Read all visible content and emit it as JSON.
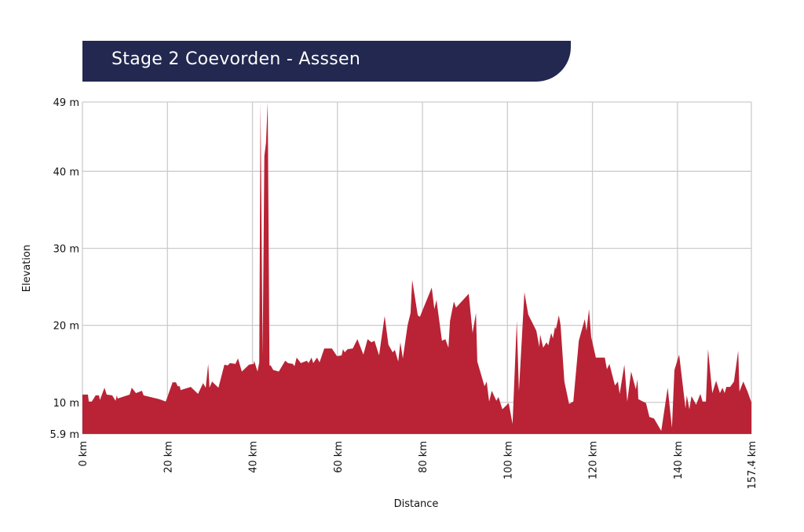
{
  "header": {
    "title": "Stage 2 Coevorden - Asssen"
  },
  "chart_data": {
    "type": "area",
    "title": "Stage 2 Coevorden - Asssen",
    "xlabel": "Distance",
    "ylabel": "Elevation",
    "xlim": [
      0,
      157.4
    ],
    "ylim": [
      5.9,
      49
    ],
    "grid": true,
    "color": "#b92335",
    "x_ticks": [
      {
        "value": 0,
        "label": "0 km"
      },
      {
        "value": 20,
        "label": "20 km"
      },
      {
        "value": 40,
        "label": "40 km"
      },
      {
        "value": 60,
        "label": "60 km"
      },
      {
        "value": 80,
        "label": "80 km"
      },
      {
        "value": 100,
        "label": "100 km"
      },
      {
        "value": 120,
        "label": "120 km"
      },
      {
        "value": 140,
        "label": "140 km"
      },
      {
        "value": 157.4,
        "label": "157.4 km"
      }
    ],
    "y_ticks": [
      {
        "value": 5.9,
        "label": "5.9 m"
      },
      {
        "value": 10,
        "label": "10 m"
      },
      {
        "value": 20,
        "label": "20 m"
      },
      {
        "value": 30,
        "label": "30 m"
      },
      {
        "value": 40,
        "label": "40 m"
      },
      {
        "value": 49,
        "label": "49 m"
      }
    ],
    "series": [
      {
        "name": "Elevation",
        "points": [
          [
            0,
            11
          ],
          [
            1.3,
            11
          ],
          [
            1.5,
            10.1
          ],
          [
            2.2,
            10.1
          ],
          [
            3.1,
            10.9
          ],
          [
            3.9,
            10.9
          ],
          [
            4.1,
            10.3
          ],
          [
            5.2,
            11.9
          ],
          [
            5.7,
            11
          ],
          [
            7.0,
            10.9
          ],
          [
            7.8,
            10.2
          ],
          [
            8.1,
            10.9
          ],
          [
            8.3,
            10.5
          ],
          [
            11.1,
            11
          ],
          [
            11.6,
            11.9
          ],
          [
            12.6,
            11.2
          ],
          [
            14.0,
            11.5
          ],
          [
            14.4,
            10.9
          ],
          [
            18.1,
            10.4
          ],
          [
            19.6,
            10.1
          ],
          [
            21.2,
            12.6
          ],
          [
            22.0,
            12.6
          ],
          [
            22.4,
            12.1
          ],
          [
            22.9,
            12.1
          ],
          [
            23.1,
            11.6
          ],
          [
            25.5,
            12
          ],
          [
            27.2,
            11.1
          ],
          [
            28.4,
            12.5
          ],
          [
            29.0,
            11.9
          ],
          [
            29.6,
            15
          ],
          [
            29.9,
            11.9
          ],
          [
            30.5,
            12.7
          ],
          [
            32.0,
            11.9
          ],
          [
            33.4,
            14.9
          ],
          [
            34.2,
            14.8
          ],
          [
            34.7,
            15.1
          ],
          [
            36.0,
            15
          ],
          [
            36.6,
            15.7
          ],
          [
            37.5,
            14
          ],
          [
            39.2,
            14.9
          ],
          [
            40.3,
            15
          ],
          [
            40.4,
            15.4
          ],
          [
            41.2,
            14
          ],
          [
            41.6,
            15.2
          ],
          [
            41.9,
            49
          ],
          [
            42.4,
            16
          ],
          [
            42.8,
            42
          ],
          [
            43.2,
            43.7
          ],
          [
            43.6,
            49
          ],
          [
            44.0,
            14.8
          ],
          [
            44.3,
            14.8
          ],
          [
            44.9,
            14.2
          ],
          [
            46.2,
            14
          ],
          [
            47.7,
            15.4
          ],
          [
            48.4,
            15.1
          ],
          [
            49.5,
            15
          ],
          [
            49.9,
            14.7
          ],
          [
            50.4,
            15.8
          ],
          [
            51.4,
            15.1
          ],
          [
            52.8,
            15.4
          ],
          [
            53.2,
            15.1
          ],
          [
            53.9,
            15.8
          ],
          [
            54.3,
            15.1
          ],
          [
            55.2,
            15.8
          ],
          [
            55.8,
            15.2
          ],
          [
            56.9,
            17
          ],
          [
            58.7,
            17
          ],
          [
            59.9,
            16
          ],
          [
            61.0,
            16.1
          ],
          [
            61.3,
            16.9
          ],
          [
            61.7,
            16.5
          ],
          [
            62.4,
            16.9
          ],
          [
            63.6,
            17
          ],
          [
            64.7,
            18.2
          ],
          [
            66.1,
            16.2
          ],
          [
            67.1,
            18.2
          ],
          [
            68.0,
            17.8
          ],
          [
            68.7,
            18
          ],
          [
            69.8,
            16.1
          ],
          [
            71.1,
            21.2
          ],
          [
            72.0,
            17.5
          ],
          [
            73.0,
            16.5
          ],
          [
            73.5,
            16.8
          ],
          [
            74.3,
            15.3
          ],
          [
            74.8,
            17.8
          ],
          [
            75.4,
            15.7
          ],
          [
            76.5,
            20
          ],
          [
            77.2,
            21.6
          ],
          [
            77.6,
            25.9
          ],
          [
            78.9,
            21.3
          ],
          [
            79.4,
            21.1
          ],
          [
            82.2,
            24.9
          ],
          [
            82.8,
            22.1
          ],
          [
            83.3,
            23.3
          ],
          [
            84.6,
            18
          ],
          [
            85.4,
            18.2
          ],
          [
            86.1,
            17.1
          ],
          [
            86.5,
            20.6
          ],
          [
            87.4,
            23.1
          ],
          [
            87.9,
            22.3
          ],
          [
            90.9,
            24.1
          ],
          [
            91.8,
            19
          ],
          [
            92.6,
            21.6
          ],
          [
            92.9,
            15.3
          ],
          [
            94.6,
            12.1
          ],
          [
            95.1,
            12.7
          ],
          [
            95.7,
            10.1
          ],
          [
            96.3,
            11.5
          ],
          [
            97.4,
            10.2
          ],
          [
            97.9,
            10.7
          ],
          [
            98.8,
            9.1
          ],
          [
            100.3,
            9.9
          ],
          [
            101.2,
            7.2
          ],
          [
            102.2,
            20.6
          ],
          [
            102.7,
            11.4
          ],
          [
            104.0,
            24.3
          ],
          [
            104.9,
            21.4
          ],
          [
            106.8,
            19.3
          ],
          [
            107.5,
            17.2
          ],
          [
            107.7,
            18.8
          ],
          [
            108.4,
            17.1
          ],
          [
            109.2,
            17.8
          ],
          [
            109.6,
            17.4
          ],
          [
            110.3,
            19
          ],
          [
            110.7,
            18.3
          ],
          [
            111.2,
            19.8
          ],
          [
            111.4,
            19.5
          ],
          [
            112.1,
            21.3
          ],
          [
            112.5,
            20
          ],
          [
            113.4,
            12.7
          ],
          [
            114.5,
            9.8
          ],
          [
            115.5,
            10.1
          ],
          [
            116.8,
            18
          ],
          [
            118.2,
            20.8
          ],
          [
            118.6,
            19.3
          ],
          [
            119.2,
            22.1
          ],
          [
            119.7,
            18.5
          ],
          [
            120.8,
            15.8
          ],
          [
            122.9,
            15.8
          ],
          [
            123.4,
            14.3
          ],
          [
            124.0,
            15
          ],
          [
            125.3,
            12.2
          ],
          [
            126.0,
            12.7
          ],
          [
            126.4,
            11.1
          ],
          [
            127.5,
            14.9
          ],
          [
            128.2,
            10.1
          ],
          [
            129.1,
            14
          ],
          [
            130.2,
            11.7
          ],
          [
            130.6,
            13
          ],
          [
            130.8,
            10.4
          ],
          [
            132.6,
            9.9
          ],
          [
            133.4,
            8.1
          ],
          [
            134.5,
            7.9
          ],
          [
            136.2,
            6.3
          ],
          [
            137.7,
            11.9
          ],
          [
            138.7,
            6.7
          ],
          [
            139.3,
            14.2
          ],
          [
            140.4,
            16.2
          ],
          [
            141.9,
            9.2
          ],
          [
            142.2,
            10.9
          ],
          [
            142.8,
            9.1
          ],
          [
            143.3,
            10.8
          ],
          [
            144.4,
            9.7
          ],
          [
            145.4,
            11.1
          ],
          [
            145.9,
            10.1
          ],
          [
            146.7,
            10.1
          ],
          [
            147.2,
            16.9
          ],
          [
            148.2,
            11.2
          ],
          [
            149.1,
            12.8
          ],
          [
            150.0,
            11.2
          ],
          [
            150.6,
            11.9
          ],
          [
            151.1,
            11.2
          ],
          [
            151.5,
            12
          ],
          [
            152.4,
            12
          ],
          [
            153.3,
            12.7
          ],
          [
            154.3,
            16.7
          ],
          [
            154.6,
            11.4
          ],
          [
            155.5,
            12.7
          ],
          [
            156.5,
            11.4
          ],
          [
            157.4,
            10
          ]
        ]
      }
    ]
  }
}
